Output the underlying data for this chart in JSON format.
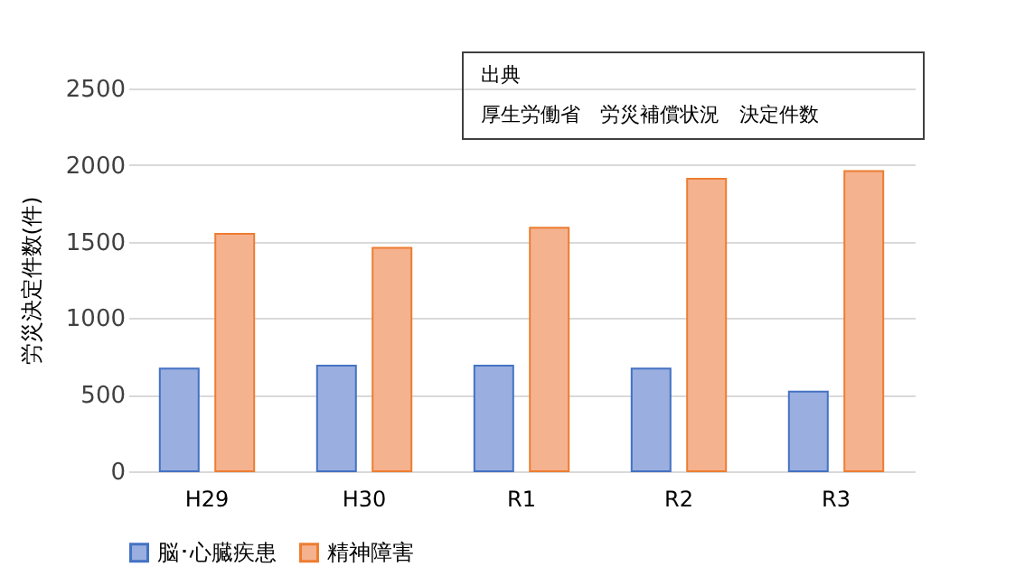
{
  "chart_data": {
    "type": "bar",
    "ylabel": "労災決定件数(件)",
    "categories": [
      "H29",
      "H30",
      "R1",
      "R2",
      "R3"
    ],
    "series": [
      {
        "name": "脳･心臓疾患",
        "color": "#9aafdf",
        "values": [
          670,
          690,
          690,
          670,
          520
        ]
      },
      {
        "name": "精神障害",
        "color": "#f5b28f",
        "values": [
          1550,
          1460,
          1590,
          1910,
          1960
        ]
      }
    ],
    "ylim": [
      0,
      2500
    ],
    "yticks": [
      0,
      500,
      1000,
      1500,
      2000,
      2500
    ],
    "grid": "y",
    "legend": "bottom",
    "annotations": [
      "出典",
      "厚生労働省　労災補償状況　決定件数"
    ]
  }
}
